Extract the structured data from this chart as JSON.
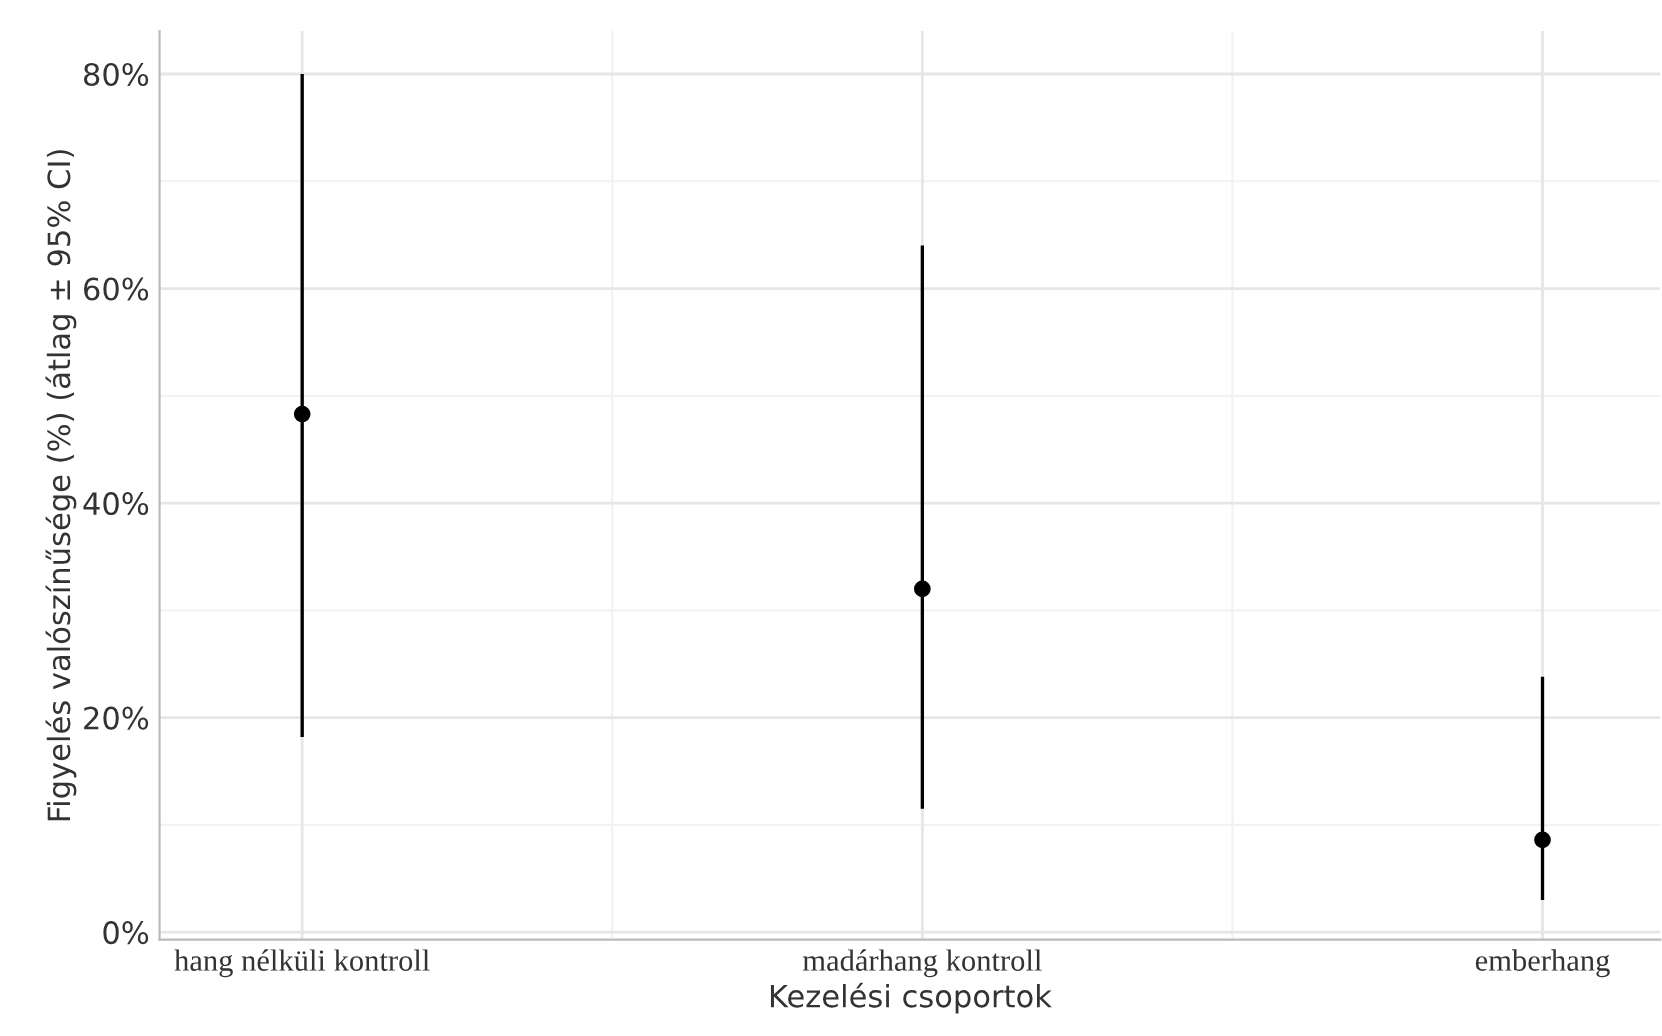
{
  "chart_data": {
    "type": "scatter",
    "xlabel": "Kezelési csoportok",
    "ylabel": "Figyelés valószínűsége (%) (átlag ± 95% CI)",
    "categories": [
      "hang nélküli kontroll",
      "madárhang kontroll",
      "emberhang"
    ],
    "values": [
      48.3,
      32.0,
      8.6
    ],
    "errors": [
      [
        18.2,
        80.0
      ],
      [
        11.5,
        64.0
      ],
      [
        3.0,
        23.8
      ]
    ],
    "color": "#000000",
    "marker": "circle",
    "ylim": [
      -0.7,
      84
    ],
    "yticks": [
      {
        "value": 0,
        "label": "0%"
      },
      {
        "value": 20,
        "label": "20%"
      },
      {
        "value": 40,
        "label": "40%"
      },
      {
        "value": 60,
        "label": "60%"
      },
      {
        "value": 80,
        "label": "80%"
      }
    ],
    "grid": true
  }
}
